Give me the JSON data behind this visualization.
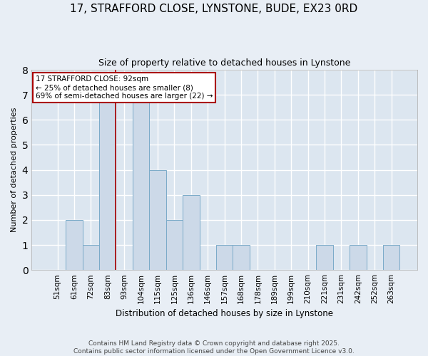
{
  "title": "17, STRAFFORD CLOSE, LYNSTONE, BUDE, EX23 0RD",
  "subtitle": "Size of property relative to detached houses in Lynstone",
  "xlabel": "Distribution of detached houses by size in Lynstone",
  "ylabel": "Number of detached properties",
  "categories": [
    "51sqm",
    "61sqm",
    "72sqm",
    "83sqm",
    "93sqm",
    "104sqm",
    "115sqm",
    "125sqm",
    "136sqm",
    "146sqm",
    "157sqm",
    "168sqm",
    "178sqm",
    "189sqm",
    "199sqm",
    "210sqm",
    "221sqm",
    "231sqm",
    "242sqm",
    "252sqm",
    "263sqm"
  ],
  "values": [
    0,
    2,
    1,
    7,
    0,
    7,
    4,
    2,
    3,
    0,
    1,
    1,
    0,
    0,
    0,
    0,
    1,
    0,
    1,
    0,
    1
  ],
  "bar_color": "#ccd9e8",
  "bar_edge_color": "#7aaac8",
  "fig_bg_color": "#e8eef5",
  "axes_bg_color": "#dce6f0",
  "grid_color": "#ffffff",
  "property_line_color": "#aa0000",
  "property_line_index": 4,
  "annotation_text": "17 STRAFFORD CLOSE: 92sqm\n← 25% of detached houses are smaller (8)\n69% of semi-detached houses are larger (22) →",
  "annotation_box_edge_color": "#aa0000",
  "annotation_box_face_color": "#ffffff",
  "footer_line1": "Contains HM Land Registry data © Crown copyright and database right 2025.",
  "footer_line2": "Contains public sector information licensed under the Open Government Licence v3.0.",
  "ylim": [
    0,
    8
  ],
  "yticks": [
    0,
    1,
    2,
    3,
    4,
    5,
    6,
    7,
    8
  ],
  "title_fontsize": 11,
  "subtitle_fontsize": 9,
  "xlabel_fontsize": 8.5,
  "ylabel_fontsize": 8,
  "tick_fontsize": 7.5,
  "annotation_fontsize": 7.5,
  "footer_fontsize": 6.5
}
